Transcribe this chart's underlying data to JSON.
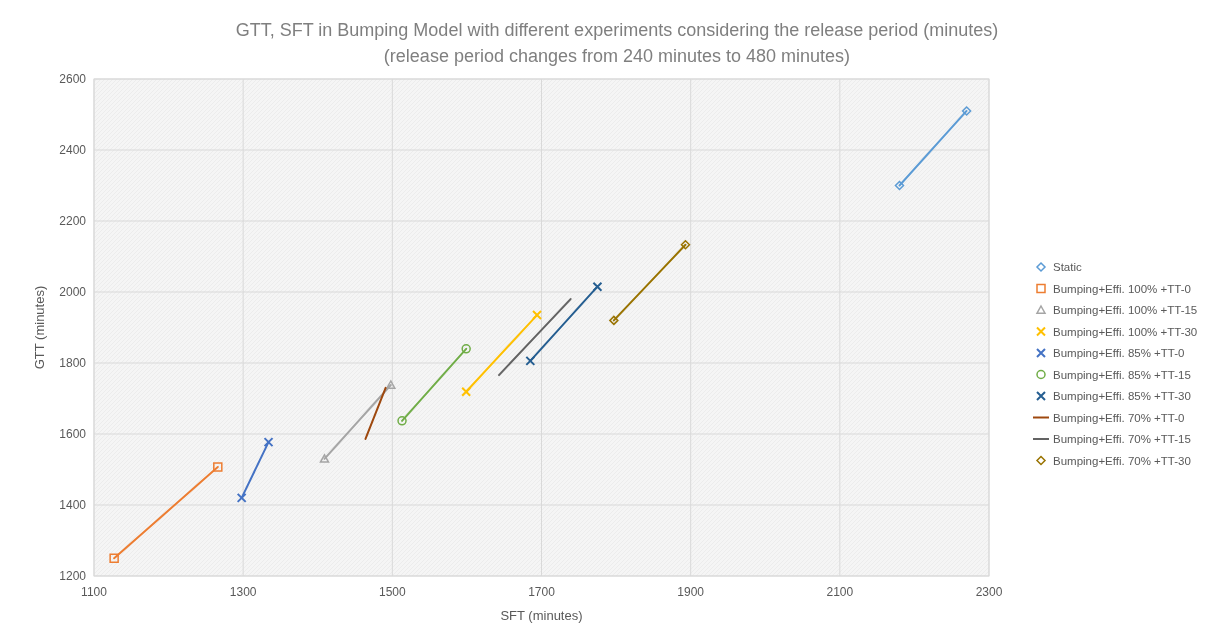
{
  "chart_data": {
    "type": "line",
    "title": "GTT, SFT in Bumping Model with different experiments considering the release period   (minutes)",
    "subtitle": "(release period changes from 240 minutes to 480 minutes)",
    "xlabel": "SFT (minutes)",
    "ylabel": "GTT (minutes)",
    "xlim": [
      1100,
      2300
    ],
    "xticks": [
      1100,
      1300,
      1500,
      1700,
      1900,
      2100,
      2300
    ],
    "ylim": [
      1200,
      2600
    ],
    "yticks": [
      1200,
      1400,
      1600,
      1800,
      2000,
      2200,
      2400,
      2600
    ],
    "grid": true,
    "legend": "right",
    "series": [
      {
        "name": "Static",
        "color": "#5b9bd5",
        "marker": "diamond",
        "x": [
          2180,
          2270
        ],
        "values": [
          2300,
          2510
        ]
      },
      {
        "name": "Bumping+Effi. 100% +TT-0",
        "color": "#ed7d31",
        "marker": "square",
        "x": [
          1127,
          1266
        ],
        "values": [
          1250,
          1507
        ]
      },
      {
        "name": "Bumping+Effi. 100% +TT-15",
        "color": "#a5a5a5",
        "marker": "triangle",
        "x": [
          1409,
          1498
        ],
        "values": [
          1530,
          1738
        ]
      },
      {
        "name": "Bumping+Effi. 100% +TT-30",
        "color": "#ffc000",
        "marker": "cross",
        "x": [
          1599,
          1694
        ],
        "values": [
          1719,
          1935
        ]
      },
      {
        "name": "Bumping+Effi. 85% +TT-0",
        "color": "#4472c4",
        "marker": "cross",
        "x": [
          1298,
          1334
        ],
        "values": [
          1420,
          1577
        ]
      },
      {
        "name": "Bumping+Effi. 85% +TT-15",
        "color": "#70ad47",
        "marker": "circle",
        "x": [
          1513,
          1599
        ],
        "values": [
          1637,
          1840
        ]
      },
      {
        "name": "Bumping+Effi. 85% +TT-30",
        "color": "#255e91",
        "marker": "cross",
        "x": [
          1685,
          1775
        ],
        "values": [
          1806,
          2015
        ]
      },
      {
        "name": "Bumping+Effi. 70% +TT-0",
        "color": "#9e480e",
        "marker": "none",
        "x": [
          1464,
          1491
        ],
        "values": [
          1586,
          1730
        ]
      },
      {
        "name": "Bumping+Effi. 70% +TT-15",
        "color": "#636363",
        "marker": "none",
        "x": [
          1643,
          1739
        ],
        "values": [
          1766,
          1980
        ]
      },
      {
        "name": "Bumping+Effi. 70% +TT-30",
        "color": "#997300",
        "marker": "diamond",
        "x": [
          1797,
          1893
        ],
        "values": [
          1920,
          2133
        ]
      }
    ]
  }
}
